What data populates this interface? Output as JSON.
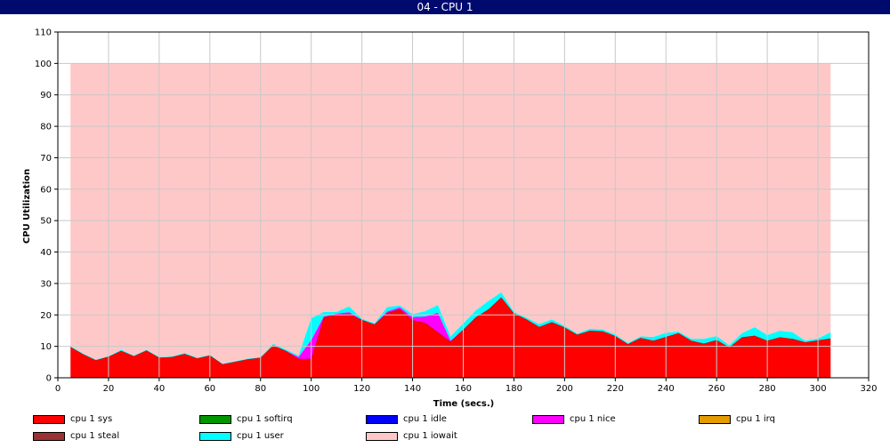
{
  "window": {
    "title": "04 - CPU 1"
  },
  "chart_data": {
    "type": "area",
    "stacked": true,
    "xlabel": "Time (secs.)",
    "ylabel": "CPU Utilization",
    "xlim": [
      0,
      320
    ],
    "ylim": [
      0,
      110
    ],
    "xticks": [
      0,
      20,
      40,
      60,
      80,
      100,
      120,
      140,
      160,
      180,
      200,
      220,
      240,
      260,
      280,
      300,
      320
    ],
    "yticks": [
      0,
      10,
      20,
      30,
      40,
      50,
      60,
      70,
      80,
      90,
      100,
      110
    ],
    "grid": true,
    "legend_position": "bottom",
    "x": [
      5,
      10,
      15,
      20,
      25,
      30,
      35,
      40,
      45,
      50,
      55,
      60,
      65,
      70,
      75,
      80,
      85,
      90,
      95,
      100,
      105,
      110,
      115,
      120,
      125,
      130,
      135,
      140,
      145,
      150,
      155,
      160,
      165,
      170,
      175,
      180,
      185,
      190,
      195,
      200,
      205,
      210,
      215,
      220,
      225,
      230,
      235,
      240,
      245,
      250,
      255,
      260,
      265,
      270,
      275,
      280,
      285,
      290,
      295,
      300,
      305
    ],
    "series": [
      {
        "name": "cpu 1 sys",
        "color": "#ff0000",
        "values": [
          9.8,
          7.5,
          5.6,
          6.7,
          8.6,
          6.9,
          8.7,
          6.4,
          6.6,
          7.6,
          6.2,
          7.1,
          4.3,
          5.1,
          5.9,
          6.4,
          10.3,
          8.6,
          6.0,
          6.0,
          19.3,
          20.0,
          20.3,
          18.4,
          17.0,
          20.6,
          21.8,
          18.3,
          17.5,
          14.5,
          11.5,
          15.3,
          19.3,
          21.8,
          25.6,
          20.5,
          18.6,
          16.2,
          17.7,
          16.0,
          13.7,
          15.0,
          14.8,
          13.3,
          10.7,
          12.7,
          11.8,
          13.0,
          14.2,
          11.8,
          10.9,
          12.0,
          9.7,
          12.9,
          13.4,
          11.8,
          12.9,
          12.4,
          11.3,
          11.9,
          12.5
        ]
      },
      {
        "name": "cpu 1 softirq",
        "color": "#009600",
        "values": [
          0,
          0,
          0,
          0,
          0,
          0,
          0,
          0,
          0,
          0,
          0,
          0,
          0,
          0,
          0,
          0,
          0,
          0,
          0,
          0,
          0,
          0,
          0,
          0,
          0,
          0,
          0,
          0,
          0,
          0,
          0,
          0,
          0,
          0,
          0,
          0,
          0,
          0,
          0,
          0,
          0,
          0,
          0,
          0,
          0,
          0,
          0,
          0,
          0,
          0,
          0,
          0,
          0,
          0,
          0,
          0,
          0,
          0,
          0,
          0,
          0
        ]
      },
      {
        "name": "cpu 1 idle",
        "color": "#0000ff",
        "values": [
          0,
          0,
          0,
          0,
          0,
          0,
          0,
          0,
          0,
          0,
          0,
          0,
          0,
          0,
          0,
          0,
          0,
          0,
          0,
          0,
          0,
          0,
          0,
          0,
          0,
          0,
          0,
          0,
          0,
          0,
          0,
          0,
          0,
          0,
          0,
          0,
          0,
          0,
          0,
          0,
          0,
          0,
          0,
          0,
          0,
          0,
          0,
          0,
          0,
          0,
          0,
          0,
          0,
          0,
          0,
          0,
          0,
          0,
          0,
          0,
          0
        ]
      },
      {
        "name": "cpu 1 nice",
        "color": "#ff00ff",
        "values": [
          0,
          0,
          0,
          0,
          0,
          0,
          0,
          0,
          0,
          0,
          0,
          0,
          0,
          0,
          0,
          0,
          0,
          0,
          0.6,
          6.0,
          0.2,
          0.4,
          0.6,
          0,
          0,
          0.5,
          0.6,
          1.0,
          2.0,
          6.2,
          0.3,
          0,
          0,
          0,
          0,
          0,
          0,
          0,
          0,
          0,
          0,
          0,
          0,
          0,
          0,
          0,
          0,
          0,
          0,
          0,
          0,
          0,
          0,
          0,
          0,
          0,
          0,
          0,
          0,
          0,
          0
        ]
      },
      {
        "name": "cpu 1 irq",
        "color": "#e39b00",
        "values": [
          0,
          0,
          0,
          0,
          0,
          0,
          0,
          0,
          0,
          0,
          0,
          0,
          0,
          0,
          0,
          0,
          0,
          0,
          0,
          0,
          0,
          0,
          0,
          0,
          0,
          0,
          0,
          0,
          0,
          0,
          0,
          0,
          0,
          0,
          0,
          0,
          0,
          0,
          0,
          0,
          0,
          0,
          0,
          0,
          0,
          0,
          0,
          0,
          0,
          0,
          0,
          0,
          0,
          0,
          0,
          0,
          0,
          0,
          0,
          0,
          0
        ]
      },
      {
        "name": "cpu 1 steal",
        "color": "#9b3232",
        "values": [
          0,
          0,
          0,
          0,
          0,
          0,
          0,
          0,
          0,
          0,
          0,
          0,
          0,
          0,
          0,
          0,
          0,
          0,
          0,
          0,
          0,
          0,
          0,
          0,
          0,
          0,
          0,
          0,
          0,
          0,
          0,
          0,
          0,
          0,
          0,
          0,
          0,
          0,
          0,
          0,
          0,
          0,
          0,
          0,
          0,
          0,
          0,
          0,
          0,
          0,
          0,
          0,
          0,
          0,
          0,
          0,
          0,
          0,
          0,
          0,
          0
        ]
      },
      {
        "name": "cpu 1 user",
        "color": "#00ffff",
        "values": [
          0.3,
          0.2,
          0.2,
          0.2,
          0.3,
          0.2,
          0.2,
          0.2,
          0.2,
          0.3,
          0.2,
          0.2,
          0.2,
          0.2,
          0.2,
          0.2,
          0.5,
          0.4,
          0.5,
          7.0,
          1.5,
          0.6,
          1.8,
          0.4,
          0.4,
          1.4,
          0.6,
          1.0,
          1.7,
          2.5,
          1.4,
          2.0,
          2.2,
          2.7,
          1.6,
          0.5,
          0.5,
          0.9,
          0.9,
          0.5,
          0.4,
          0.6,
          0.6,
          0.5,
          0.4,
          0.5,
          1.2,
          1.3,
          0.5,
          0.6,
          1.5,
          1.3,
          0.7,
          1.3,
          2.7,
          1.8,
          2.1,
          2.1,
          0.5,
          0.6,
          2.0
        ]
      },
      {
        "name": "cpu 1 iowait",
        "color": "#ffc8c8",
        "values": [
          89.9,
          92.3,
          94.2,
          93.1,
          91.1,
          92.9,
          91.1,
          93.4,
          93.2,
          92.1,
          93.6,
          92.7,
          95.5,
          94.7,
          93.9,
          93.4,
          89.2,
          91.0,
          92.9,
          81.0,
          79.0,
          79.0,
          77.3,
          81.2,
          82.6,
          77.5,
          77.0,
          79.7,
          78.8,
          76.8,
          86.8,
          82.7,
          78.5,
          75.5,
          72.8,
          79.0,
          80.9,
          82.9,
          81.4,
          83.5,
          85.9,
          84.4,
          84.6,
          86.2,
          88.9,
          86.8,
          87.0,
          85.7,
          85.3,
          87.6,
          87.6,
          86.7,
          89.6,
          85.8,
          83.9,
          86.4,
          85.0,
          85.5,
          88.2,
          87.5,
          85.5
        ]
      }
    ]
  }
}
